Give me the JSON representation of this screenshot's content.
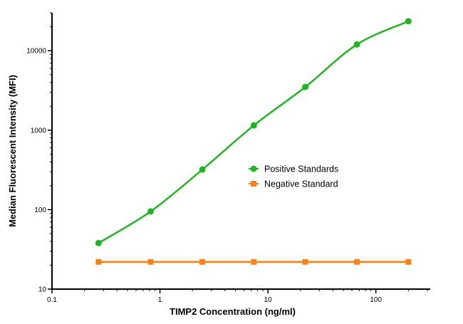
{
  "chart_data": {
    "type": "line",
    "title": "",
    "xlabel": "TIMP2 Concentration (ng/ml)",
    "ylabel": "Median Fluorescent Intensity (MFI)",
    "x_scale": "log",
    "y_scale": "log",
    "xlim": [
      0.1,
      300
    ],
    "ylim": [
      10,
      30000
    ],
    "x_ticks": [
      0.1,
      1,
      10,
      100
    ],
    "x_tick_labels": [
      "0.1",
      "1",
      "10",
      "100"
    ],
    "y_ticks": [
      10,
      100,
      1000,
      10000
    ],
    "y_tick_labels": [
      "10",
      "100",
      "1000",
      "10000"
    ],
    "grid": false,
    "legend_position": "center-right",
    "series": [
      {
        "name": "Positive Standards",
        "color": "#22b422",
        "marker": "circle",
        "x": [
          0.27,
          0.82,
          2.47,
          7.41,
          22.2,
          66.7,
          200
        ],
        "y": [
          38,
          95,
          320,
          1150,
          3500,
          12000,
          23500
        ]
      },
      {
        "name": "Negative Standard",
        "color": "#f5821f",
        "marker": "square",
        "x": [
          0.27,
          0.82,
          2.47,
          7.41,
          22.2,
          66.7,
          200
        ],
        "y": [
          22,
          22,
          22,
          22,
          22,
          22,
          22
        ]
      }
    ]
  }
}
